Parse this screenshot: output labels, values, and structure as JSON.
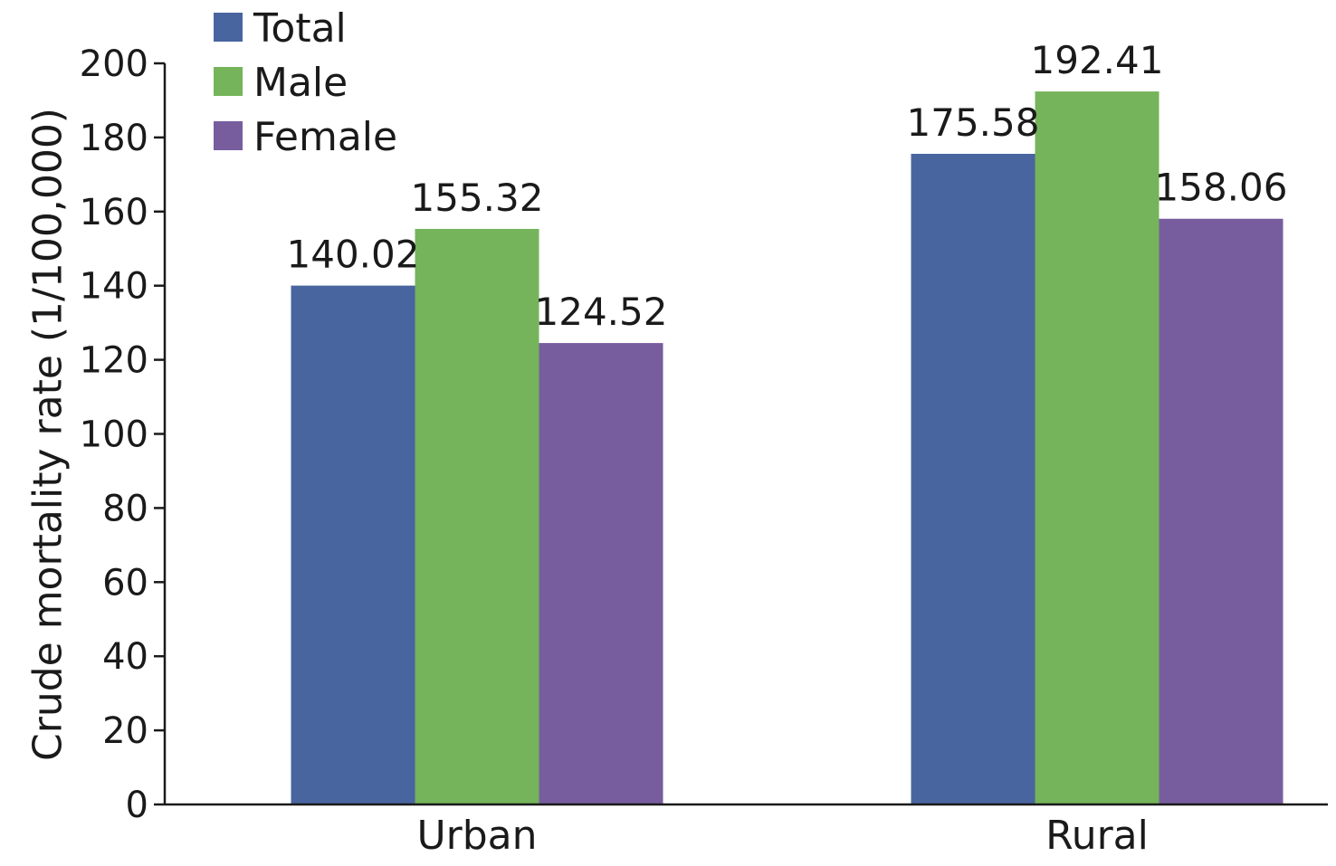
{
  "chart_data": {
    "type": "bar",
    "categories": [
      "Urban",
      "Rural"
    ],
    "series": [
      {
        "name": "Total",
        "values": [
          140.02,
          175.58
        ],
        "color": "#4965a0"
      },
      {
        "name": "Male",
        "values": [
          155.32,
          192.41
        ],
        "color": "#75b45a"
      },
      {
        "name": "Female",
        "values": [
          124.52,
          158.06
        ],
        "color": "#775d9e"
      }
    ],
    "title": "",
    "xlabel": "",
    "ylabel": "Crude mortality rate (1/100,000)",
    "ylim": [
      0,
      200
    ],
    "yticks": [
      0,
      20,
      40,
      60,
      80,
      100,
      120,
      140,
      160,
      180,
      200
    ],
    "data_labels": [
      "140.02",
      "155.32",
      "124.52",
      "175.58",
      "192.41",
      "158.06"
    ],
    "legend_position": "top-left",
    "grid": false
  }
}
